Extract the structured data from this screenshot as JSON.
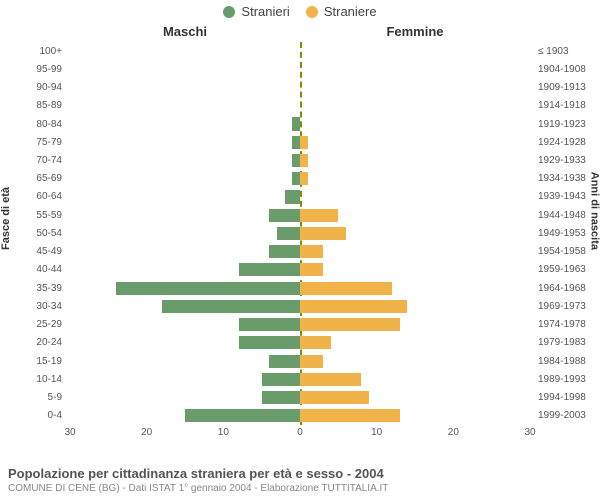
{
  "chart": {
    "type": "population-pyramid",
    "max_value": 30,
    "background_color": "#ffffff",
    "axis_zero_color": "#8a8a00",
    "grid_color": "#e8e8e8",
    "text_color": "#555",
    "legend": [
      {
        "label": "Stranieri",
        "color": "#6a9b6a"
      },
      {
        "label": "Straniere",
        "color": "#f0b34a"
      }
    ],
    "col_titles": {
      "left": "Maschi",
      "right": "Femmine"
    },
    "y_axis_titles": {
      "left": "Fasce di età",
      "right": "Anni di nascita"
    },
    "x_ticks": [
      30,
      20,
      10,
      0,
      10,
      20,
      30
    ],
    "age_bands": [
      {
        "age": "100+",
        "birth": "≤ 1903",
        "male": 0,
        "female": 0
      },
      {
        "age": "95-99",
        "birth": "1904-1908",
        "male": 0,
        "female": 0
      },
      {
        "age": "90-94",
        "birth": "1909-1913",
        "male": 0,
        "female": 0
      },
      {
        "age": "85-89",
        "birth": "1914-1918",
        "male": 0,
        "female": 0
      },
      {
        "age": "80-84",
        "birth": "1919-1923",
        "male": 1,
        "female": 0
      },
      {
        "age": "75-79",
        "birth": "1924-1928",
        "male": 1,
        "female": 1
      },
      {
        "age": "70-74",
        "birth": "1929-1933",
        "male": 1,
        "female": 1
      },
      {
        "age": "65-69",
        "birth": "1934-1938",
        "male": 1,
        "female": 1
      },
      {
        "age": "60-64",
        "birth": "1939-1943",
        "male": 2,
        "female": 0
      },
      {
        "age": "55-59",
        "birth": "1944-1948",
        "male": 4,
        "female": 5
      },
      {
        "age": "50-54",
        "birth": "1949-1953",
        "male": 3,
        "female": 6
      },
      {
        "age": "45-49",
        "birth": "1954-1958",
        "male": 4,
        "female": 3
      },
      {
        "age": "40-44",
        "birth": "1959-1963",
        "male": 8,
        "female": 3
      },
      {
        "age": "35-39",
        "birth": "1964-1968",
        "male": 24,
        "female": 12
      },
      {
        "age": "30-34",
        "birth": "1969-1973",
        "male": 18,
        "female": 14
      },
      {
        "age": "25-29",
        "birth": "1974-1978",
        "male": 8,
        "female": 13
      },
      {
        "age": "20-24",
        "birth": "1979-1983",
        "male": 8,
        "female": 4
      },
      {
        "age": "15-19",
        "birth": "1984-1988",
        "male": 4,
        "female": 3
      },
      {
        "age": "10-14",
        "birth": "1989-1993",
        "male": 5,
        "female": 8
      },
      {
        "age": "5-9",
        "birth": "1994-1998",
        "male": 5,
        "female": 9
      },
      {
        "age": "0-4",
        "birth": "1999-2003",
        "male": 15,
        "female": 13
      }
    ]
  },
  "titles": {
    "main": "Popolazione per cittadinanza straniera per età e sesso - 2004",
    "sub": "COMUNE DI CENE (BG) - Dati ISTAT 1° gennaio 2004 - Elaborazione TUTTITALIA.IT"
  }
}
